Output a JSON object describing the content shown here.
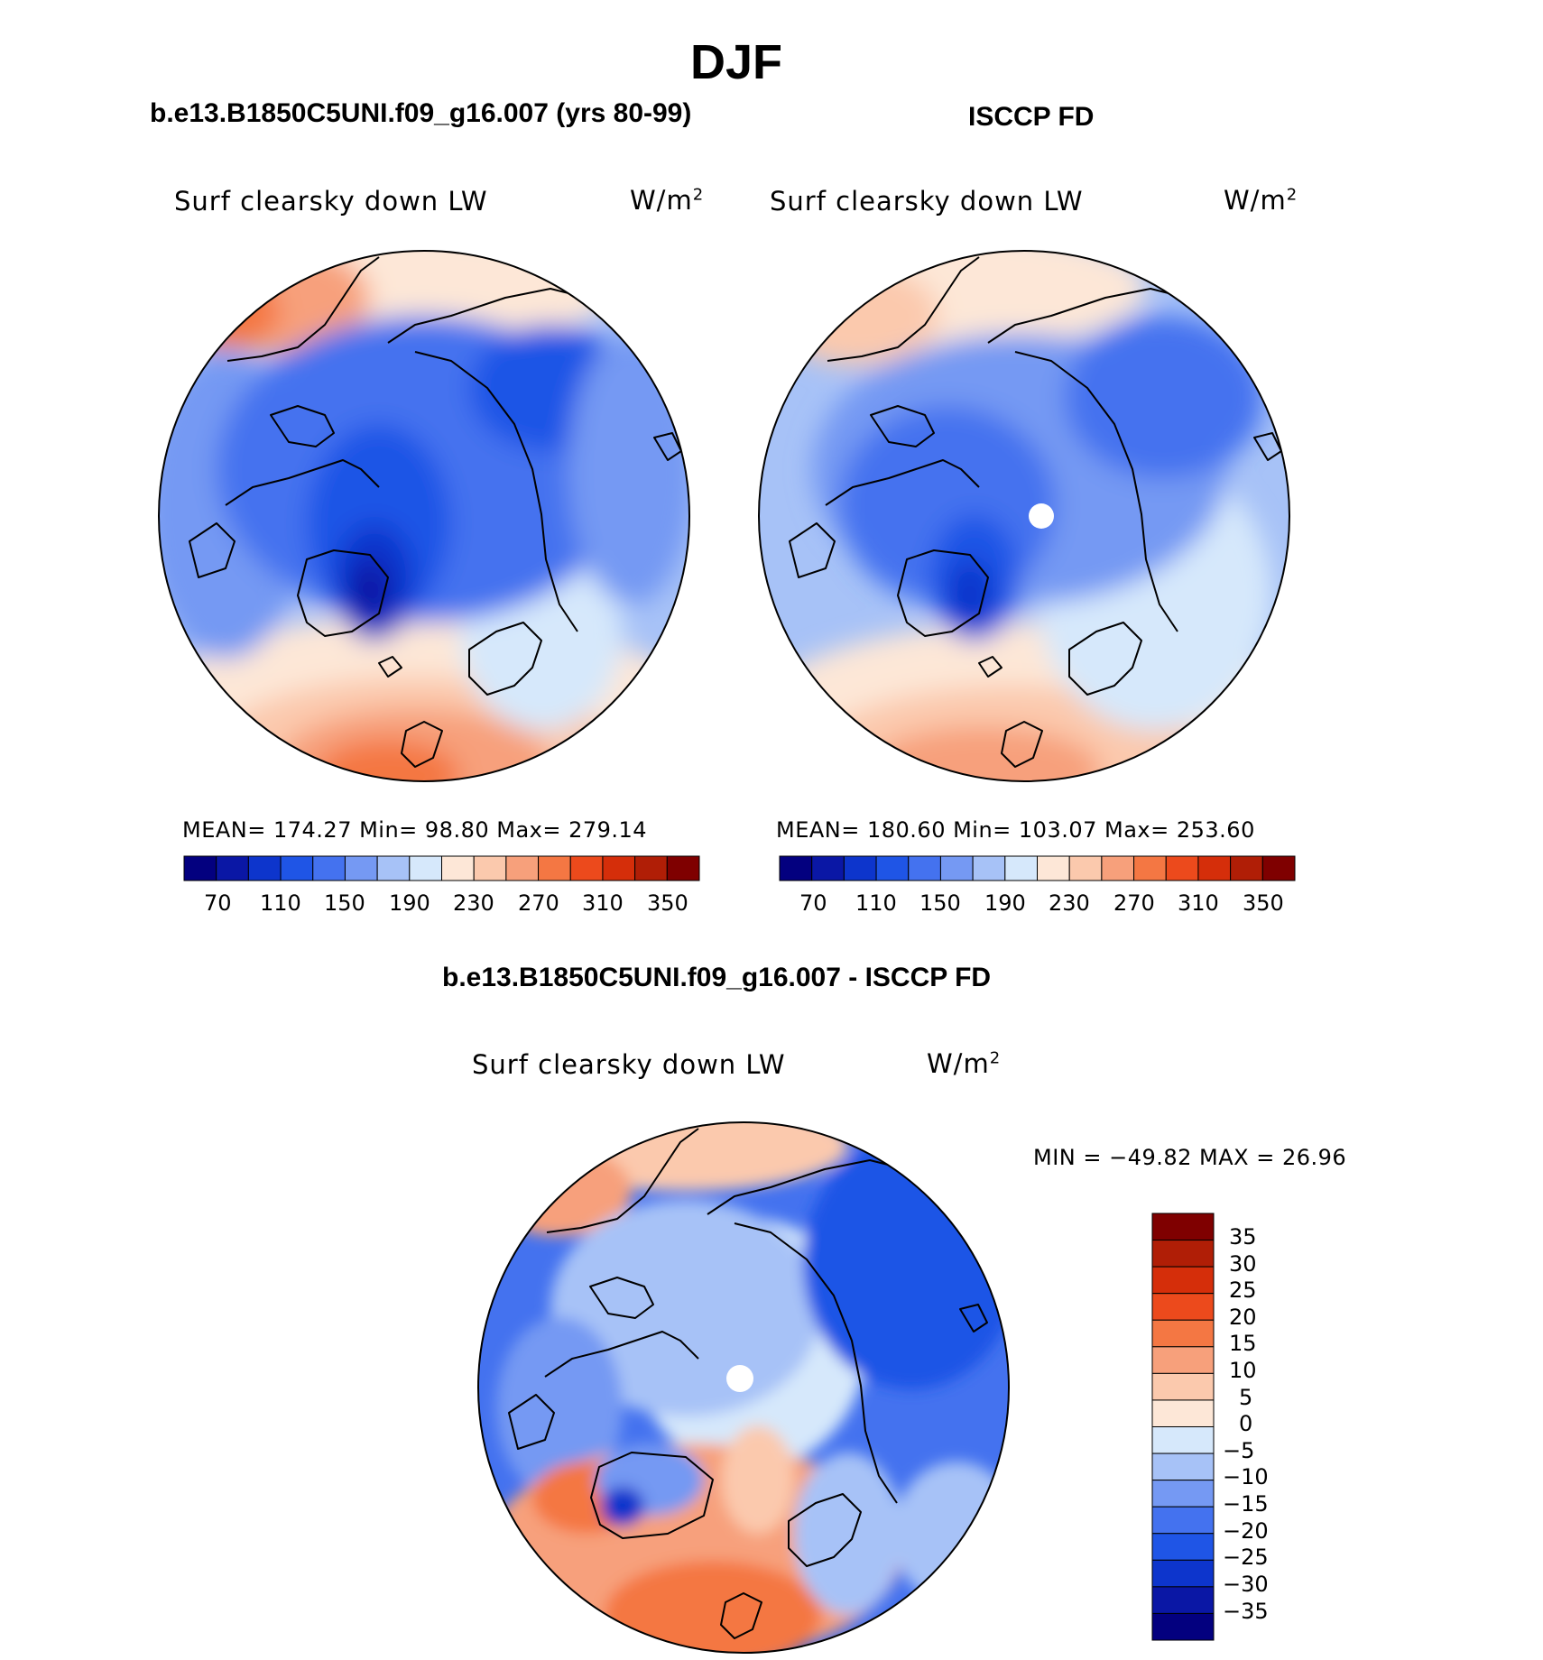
{
  "figure": {
    "season": "DJF",
    "diff_title": "b.e13.B1850C5UNI.f09_g16.007 - ISCCP FD"
  },
  "panels": [
    {
      "case_title": "b.e13.B1850C5UNI.f09_g16.007 (yrs 80-99)",
      "variable": "Surf clearsky down LW",
      "units_base": "W/m",
      "units_exp": "2",
      "stats": "MEAN= 174.27   Min=   98.80   Max= 279.14"
    },
    {
      "case_title": "ISCCP FD",
      "variable": "Surf clearsky down LW",
      "units_base": "W/m",
      "units_exp": "2",
      "stats": "MEAN= 180.60   Min= 103.07   Max= 253.60"
    },
    {
      "variable": "Surf clearsky down LW",
      "units_base": "W/m",
      "units_exp": "2",
      "stats": "MIN = −49.82 MAX =   26.96"
    }
  ],
  "colorbar_abs": {
    "colors": [
      "#03007f",
      "#0a17a5",
      "#0d35cc",
      "#1f55e6",
      "#4472ef",
      "#7599f3",
      "#a7c2f7",
      "#d6e8fb",
      "#fde7d7",
      "#fbc9ad",
      "#f7a07b",
      "#f47743",
      "#ec4a1c",
      "#d52e0a",
      "#b01e06",
      "#7f0000"
    ],
    "tick_labels": [
      "70",
      "110",
      "150",
      "190",
      "230",
      "270",
      "310",
      "350"
    ]
  },
  "colorbar_diff": {
    "colors": [
      "#03007f",
      "#0a17a5",
      "#0d35cc",
      "#1f55e6",
      "#4472ef",
      "#7599f3",
      "#a7c2f7",
      "#d6e8fb",
      "#fde7d7",
      "#fbc9ad",
      "#f7a07b",
      "#f47743",
      "#ec4a1c",
      "#d52e0a",
      "#b01e06",
      "#7f0000"
    ],
    "tick_labels": [
      "35",
      "30",
      "25",
      "20",
      "15",
      "10",
      "5",
      "0",
      "−5",
      "−10",
      "−15",
      "−20",
      "−25",
      "−30",
      "−35"
    ]
  }
}
